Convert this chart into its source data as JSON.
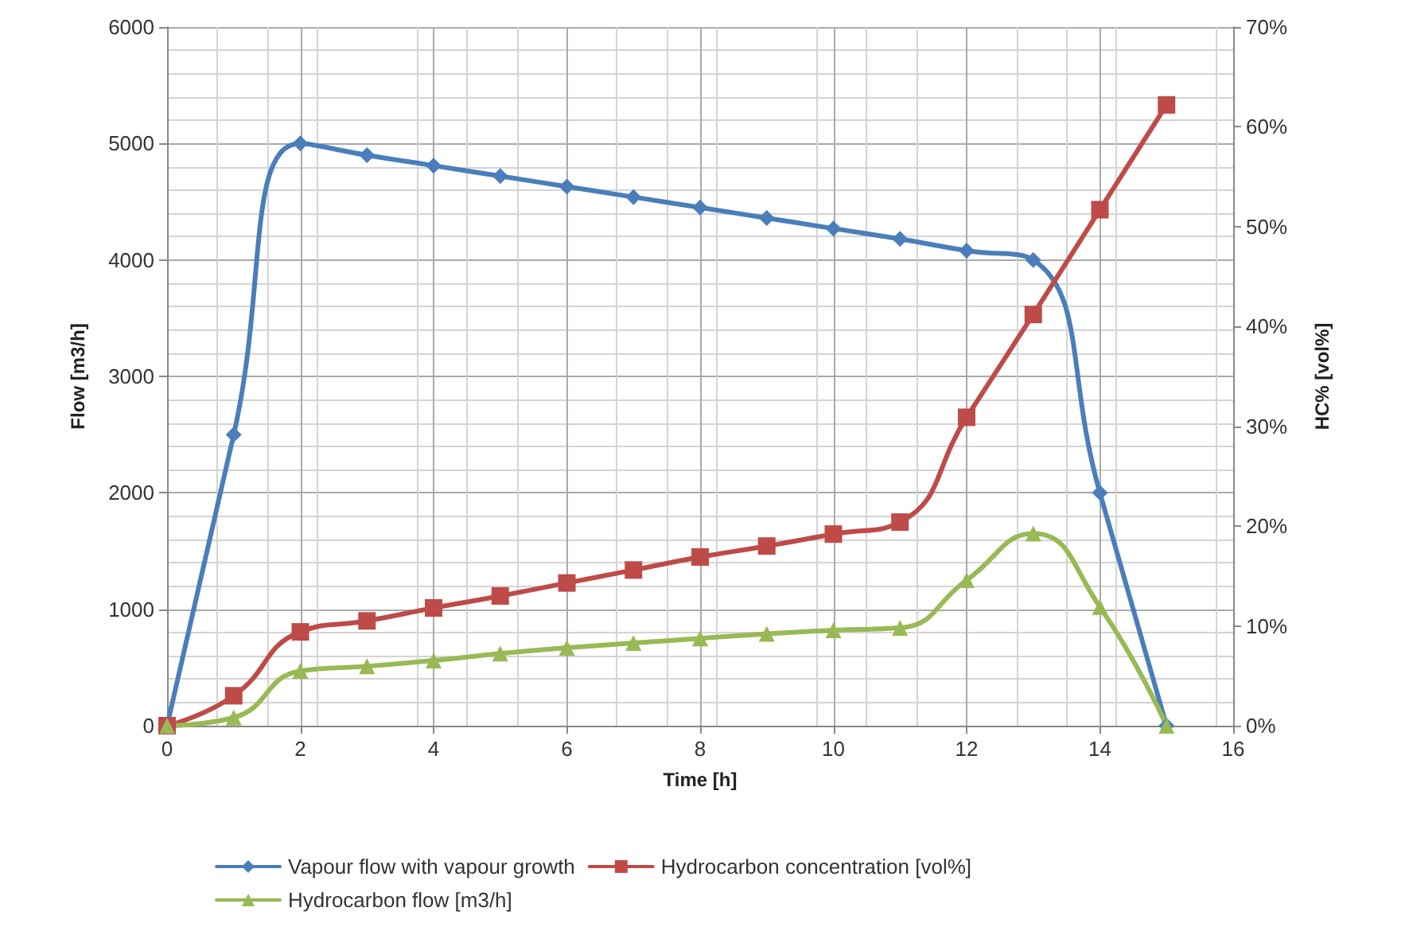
{
  "chart_data": {
    "type": "line",
    "xlabel": "Time [h]",
    "ylabel": "Flow [m3/h]",
    "y2label": "HC% [vol%]",
    "x": [
      0,
      1,
      2,
      3,
      4,
      5,
      6,
      7,
      8,
      9,
      10,
      11,
      12,
      13,
      14,
      15
    ],
    "xlim": [
      0,
      16
    ],
    "xticks": [
      0,
      2,
      4,
      6,
      8,
      10,
      12,
      14,
      16
    ],
    "ylim": [
      0,
      6000
    ],
    "yticks": [
      0,
      1000,
      2000,
      3000,
      4000,
      5000,
      6000
    ],
    "y2lim": [
      0,
      70
    ],
    "y2ticks": [
      {
        "value": 0,
        "label": "0%"
      },
      {
        "value": 10,
        "label": "10%"
      },
      {
        "value": 20,
        "label": "20%"
      },
      {
        "value": 30,
        "label": "30%"
      },
      {
        "value": 40,
        "label": "40%"
      },
      {
        "value": 50,
        "label": "50%"
      },
      {
        "value": 60,
        "label": "60%"
      },
      {
        "value": 70,
        "label": "70%"
      }
    ],
    "grid": true,
    "legend": "bottom",
    "line_style": "solid",
    "series": [
      {
        "name": "Vapour flow with vapour growth",
        "color": "#4a7ebb",
        "marker": "diamond",
        "values": [
          0,
          2500,
          5000,
          4900,
          4810,
          4720,
          4630,
          4540,
          4450,
          4360,
          4270,
          4180,
          4080,
          4000,
          2000,
          0
        ]
      },
      {
        "name": "Hydrocarbon concentration [vol%]",
        "color": "#be4b48",
        "marker": "square",
        "axis": "y2",
        "values": [
          0,
          3,
          9.4,
          10.5,
          11.8,
          13,
          14.3,
          15.6,
          16.9,
          18,
          19.2,
          20.4,
          30.9,
          41.2,
          51.7,
          62.2
        ]
      },
      {
        "name": "Hydrocarbon flow [m3/h]",
        "color": "#98b954",
        "marker": "triangle",
        "values": [
          0,
          70,
          470,
          510,
          560,
          620,
          670,
          710,
          750,
          790,
          820,
          840,
          1250,
          1650,
          1020,
          0
        ]
      }
    ]
  }
}
